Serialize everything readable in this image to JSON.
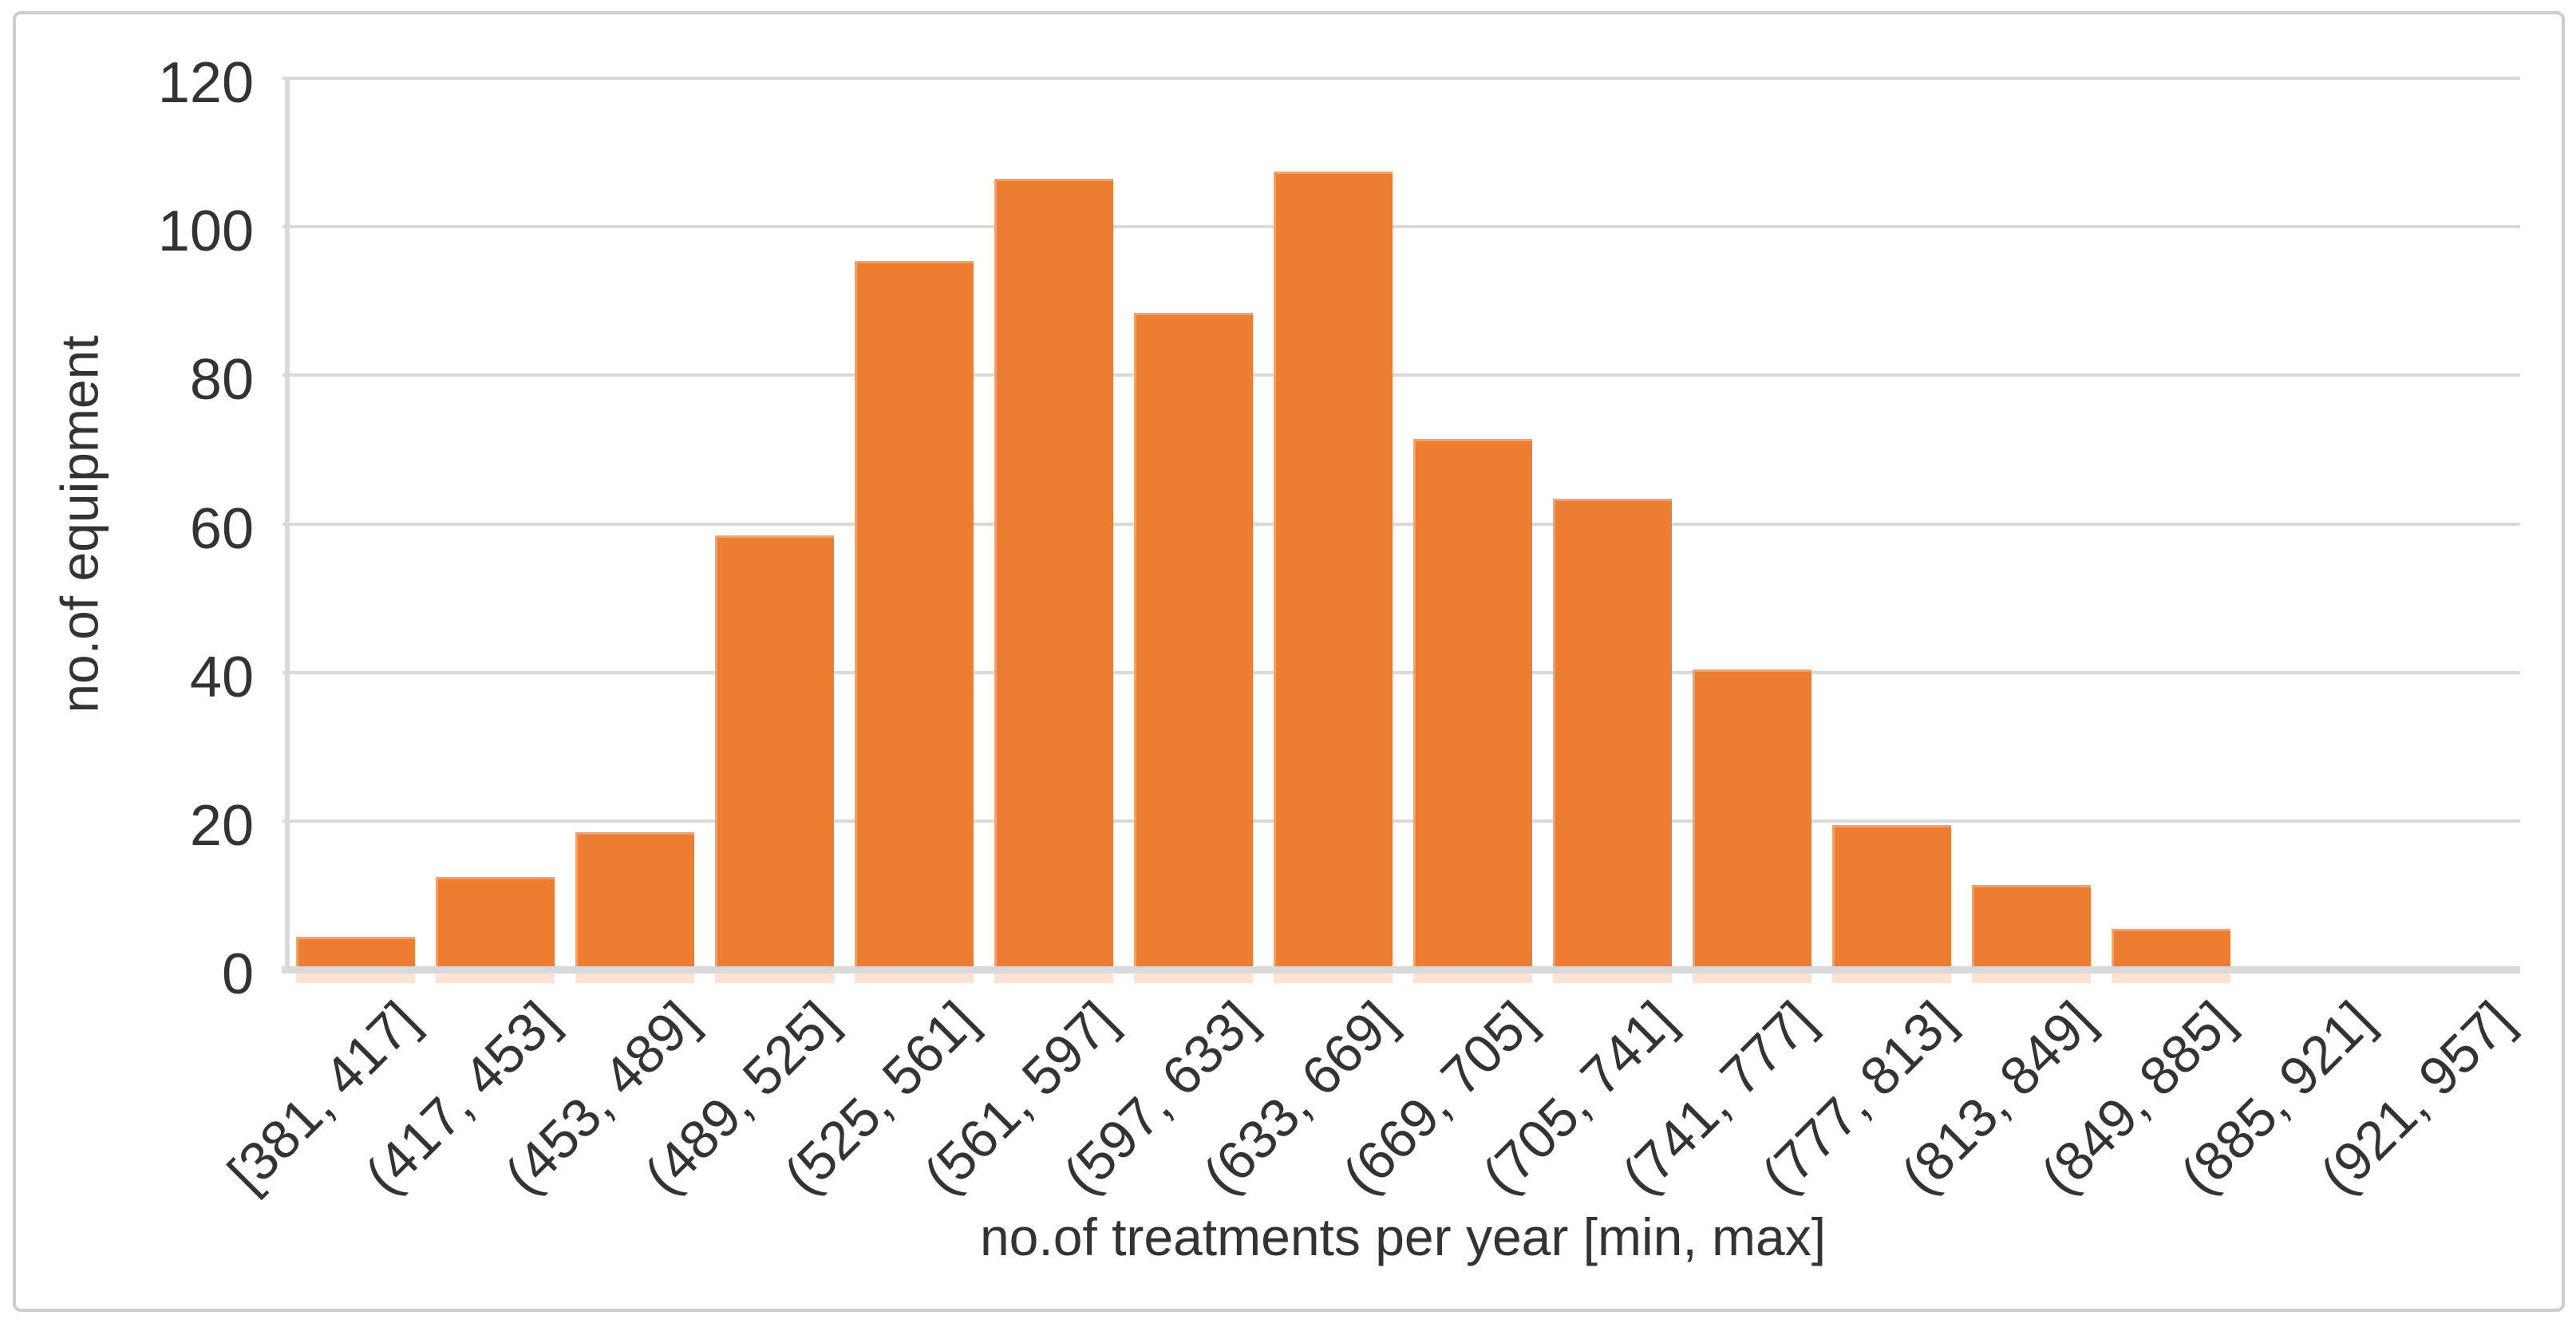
{
  "chart_data": {
    "type": "bar",
    "title": "",
    "xlabel": "no.of treatments per year [min, max]",
    "ylabel": "no.of equipment",
    "categories": [
      "[381, 417]",
      "(417, 453]",
      "(453, 489]",
      "(489, 525]",
      "(525, 561]",
      "(561, 597]",
      "(597, 633]",
      "(633, 669]",
      "(669, 705]",
      "(705, 741]",
      "(741, 777]",
      "(777, 813]",
      "(813, 849]",
      "(849, 885]",
      "(885, 921]",
      "(921, 957]"
    ],
    "values": [
      4,
      12,
      18,
      58,
      95,
      106,
      88,
      107,
      71,
      63,
      40,
      19,
      11,
      5,
      0,
      0
    ],
    "ylim": [
      0,
      120
    ],
    "yticks": [
      0,
      20,
      40,
      60,
      80,
      100,
      120
    ],
    "ytick_labels": [
      "0",
      "20",
      "40",
      "60",
      "80",
      "100",
      "120"
    ],
    "grid": "horizontal",
    "legend_position": "none",
    "bar_color": "#ED7D31",
    "gridline_color": "#D9D9D9",
    "axis_line_color": "#D9D9D9",
    "text_color": "#333333",
    "figure_border_color": "#CDCDCD",
    "background_color": "#FFFFFF"
  }
}
